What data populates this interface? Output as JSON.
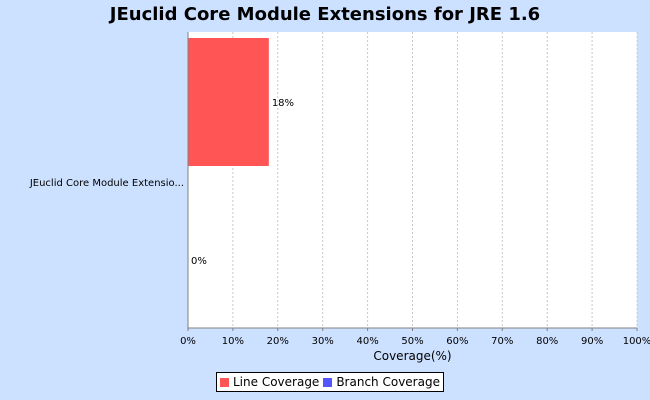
{
  "chart_data": {
    "type": "bar",
    "orientation": "horizontal",
    "title": "JEuclid Core Module Extensions for JRE 1.6",
    "categories": [
      "JEuclid Core Module Extensio..."
    ],
    "series": [
      {
        "name": "Line Coverage",
        "values": [
          18
        ],
        "color": "#ff5555",
        "value_label": "18%"
      },
      {
        "name": "Branch Coverage",
        "values": [
          0
        ],
        "color": "#5555ff",
        "value_label": "0%"
      }
    ],
    "xlabel": "Coverage(%)",
    "ylabel": "",
    "xlim": [
      0,
      100
    ],
    "x_ticks": [
      "0%",
      "10%",
      "20%",
      "30%",
      "40%",
      "50%",
      "60%",
      "70%",
      "80%",
      "90%",
      "100%"
    ],
    "grid": true,
    "legend_position": "bottom"
  }
}
